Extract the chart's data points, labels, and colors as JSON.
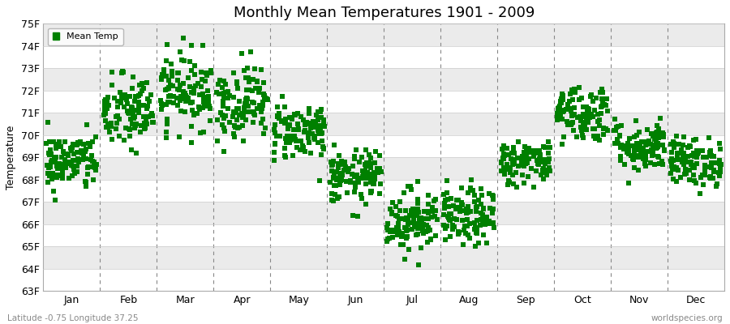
{
  "title": "Monthly Mean Temperatures 1901 - 2009",
  "ylabel": "Temperature",
  "xlabel": "",
  "subtitle_left": "Latitude -0.75 Longitude 37.25",
  "subtitle_right": "worldspecies.org",
  "ylim": [
    63,
    75
  ],
  "ytick_labels": [
    "63F",
    "64F",
    "65F",
    "66F",
    "67F",
    "68F",
    "69F",
    "70F",
    "71F",
    "72F",
    "73F",
    "74F",
    "75F"
  ],
  "ytick_values": [
    63,
    64,
    65,
    66,
    67,
    68,
    69,
    70,
    71,
    72,
    73,
    74,
    75
  ],
  "months": [
    "Jan",
    "Feb",
    "Mar",
    "Apr",
    "May",
    "Jun",
    "Jul",
    "Aug",
    "Sep",
    "Oct",
    "Nov",
    "Dec"
  ],
  "month_centers": [
    0.5,
    1.5,
    2.5,
    3.5,
    4.5,
    5.5,
    6.5,
    7.5,
    8.5,
    9.5,
    10.5,
    11.5
  ],
  "marker_color": "#008000",
  "marker": "s",
  "marker_size": 4,
  "bg_color": "#ffffff",
  "band_color_light": "#ffffff",
  "band_color_dark": "#ebebeb",
  "legend_label": "Mean Temp",
  "n_years": 109,
  "month_means": [
    68.8,
    71.0,
    72.0,
    71.5,
    70.2,
    68.1,
    66.2,
    66.3,
    68.8,
    71.0,
    69.5,
    68.8
  ],
  "month_stds": [
    0.65,
    0.85,
    0.85,
    0.85,
    0.65,
    0.6,
    0.7,
    0.65,
    0.5,
    0.65,
    0.58,
    0.55
  ],
  "seed": 42
}
